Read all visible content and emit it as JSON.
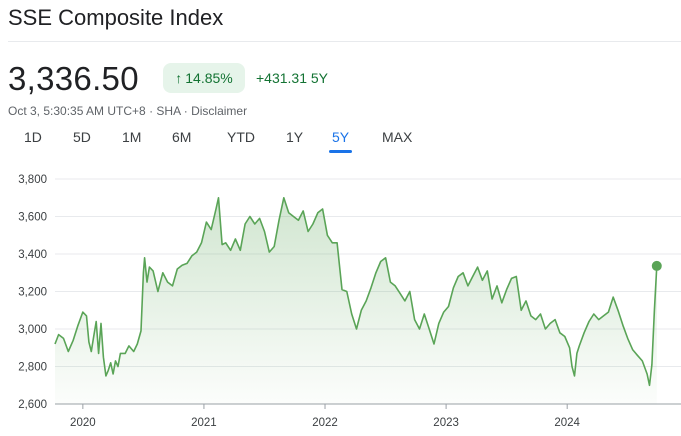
{
  "header": {
    "title": "SSE Composite Index",
    "price": "3,336.50",
    "change_pct": "14.85%",
    "change_abs": "+431.31 5Y",
    "meta_time": "Oct 3, 5:30:35 AM UTC+8",
    "meta_exchange": "SHA",
    "meta_disclaimer": "Disclaimer",
    "meta_sep": " · "
  },
  "colors": {
    "accent": "#1a73e8",
    "positive": "#137333",
    "line": "#5aa457"
  },
  "tabs": [
    {
      "label": "1D",
      "active": false
    },
    {
      "label": "5D",
      "active": false
    },
    {
      "label": "1M",
      "active": false
    },
    {
      "label": "6M",
      "active": false
    },
    {
      "label": "YTD",
      "active": false
    },
    {
      "label": "1Y",
      "active": false
    },
    {
      "label": "5Y",
      "active": true
    },
    {
      "label": "MAX",
      "active": false
    }
  ],
  "chart_data": {
    "type": "area",
    "ylim": [
      2600,
      3800
    ],
    "yticks": [
      2600,
      2800,
      3000,
      3200,
      3400,
      3600,
      3800
    ],
    "ytick_labels": [
      "2,600",
      "2,800",
      "3,000",
      "3,200",
      "3,400",
      "3,600",
      "3,800"
    ],
    "xticks": [
      2020,
      2021,
      2022,
      2023,
      2024
    ],
    "xtick_labels": [
      "2020",
      "2021",
      "2022",
      "2023",
      "2024"
    ],
    "xlim": [
      2019.77,
      2024.75
    ],
    "grid": "horizontal",
    "series": [
      {
        "x": [
          2019.77,
          2019.8,
          2019.84,
          2019.88,
          2019.92,
          2019.96,
          2020.0,
          2020.03,
          2020.05,
          2020.07,
          2020.09,
          2020.11,
          2020.13,
          2020.15,
          2020.17,
          2020.19,
          2020.21,
          2020.23,
          2020.25,
          2020.27,
          2020.29,
          2020.31,
          2020.35,
          2020.38,
          2020.42,
          2020.45,
          2020.48,
          2020.5,
          2020.51,
          2020.53,
          2020.55,
          2020.58,
          2020.62,
          2020.66,
          2020.7,
          2020.74,
          2020.78,
          2020.82,
          2020.86,
          2020.9,
          2020.94,
          2020.98,
          2021.02,
          2021.06,
          2021.1,
          2021.12,
          2021.15,
          2021.18,
          2021.22,
          2021.26,
          2021.3,
          2021.34,
          2021.38,
          2021.42,
          2021.46,
          2021.5,
          2021.54,
          2021.58,
          2021.62,
          2021.66,
          2021.7,
          2021.74,
          2021.78,
          2021.82,
          2021.86,
          2021.9,
          2021.94,
          2021.98,
          2022.02,
          2022.06,
          2022.1,
          2022.14,
          2022.18,
          2022.22,
          2022.26,
          2022.3,
          2022.34,
          2022.38,
          2022.42,
          2022.46,
          2022.5,
          2022.54,
          2022.58,
          2022.62,
          2022.66,
          2022.7,
          2022.74,
          2022.78,
          2022.82,
          2022.86,
          2022.9,
          2022.94,
          2022.98,
          2023.02,
          2023.06,
          2023.1,
          2023.14,
          2023.18,
          2023.22,
          2023.26,
          2023.3,
          2023.34,
          2023.38,
          2023.42,
          2023.46,
          2023.5,
          2023.54,
          2023.58,
          2023.62,
          2023.66,
          2023.7,
          2023.74,
          2023.78,
          2023.82,
          2023.86,
          2023.9,
          2023.94,
          2023.98,
          2024.02,
          2024.04,
          2024.06,
          2024.08,
          2024.1,
          2024.14,
          2024.18,
          2024.22,
          2024.26,
          2024.3,
          2024.34,
          2024.38,
          2024.42,
          2024.46,
          2024.5,
          2024.54,
          2024.58,
          2024.62,
          2024.66,
          2024.68,
          2024.7,
          2024.72,
          2024.74
        ],
        "y": [
          2920,
          2970,
          2950,
          2880,
          2940,
          3020,
          3090,
          3070,
          2930,
          2880,
          2960,
          3040,
          2870,
          3030,
          2850,
          2750,
          2780,
          2820,
          2760,
          2830,
          2800,
          2870,
          2870,
          2910,
          2880,
          2920,
          2990,
          3300,
          3380,
          3250,
          3330,
          3310,
          3200,
          3300,
          3250,
          3230,
          3320,
          3340,
          3350,
          3390,
          3410,
          3460,
          3570,
          3530,
          3640,
          3700,
          3450,
          3460,
          3420,
          3480,
          3420,
          3560,
          3600,
          3560,
          3590,
          3520,
          3410,
          3440,
          3580,
          3700,
          3620,
          3600,
          3580,
          3630,
          3520,
          3560,
          3620,
          3640,
          3500,
          3460,
          3460,
          3210,
          3200,
          3080,
          3000,
          3100,
          3150,
          3220,
          3300,
          3360,
          3380,
          3250,
          3230,
          3190,
          3150,
          3200,
          3050,
          3000,
          3080,
          3000,
          2920,
          3030,
          3090,
          3120,
          3220,
          3280,
          3300,
          3230,
          3280,
          3330,
          3260,
          3310,
          3160,
          3230,
          3140,
          3210,
          3270,
          3280,
          3100,
          3150,
          3070,
          3050,
          3080,
          3000,
          3030,
          3050,
          2980,
          2960,
          2900,
          2800,
          2750,
          2870,
          2910,
          2980,
          3040,
          3080,
          3050,
          3070,
          3090,
          3170,
          3100,
          3020,
          2950,
          2890,
          2860,
          2830,
          2760,
          2700,
          2810,
          3100,
          3336.5
        ]
      }
    ],
    "last_value": 3336.5
  }
}
